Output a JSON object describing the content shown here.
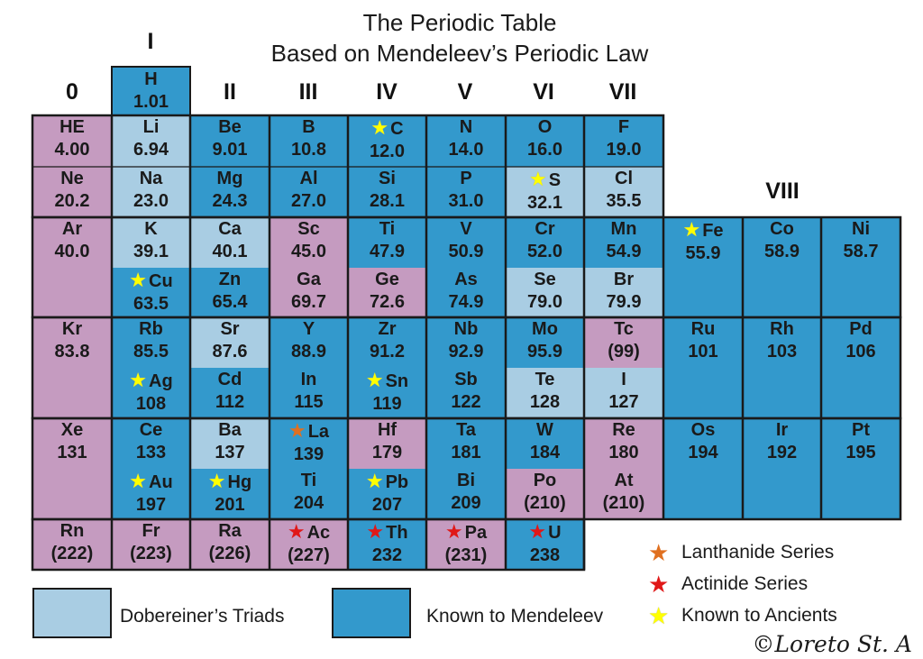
{
  "title": {
    "line1": "The Periodic Table",
    "line2": "Based on Mendeleev’s Periodic Law"
  },
  "groups": {
    "g0": "0",
    "g1": "I",
    "g2": "II",
    "g3": "III",
    "g4": "IV",
    "g5": "V",
    "g6": "VI",
    "g7": "VII",
    "g8": "VIII"
  },
  "hydrogen": {
    "symbol": "H",
    "weight": "1.01"
  },
  "elements": [
    {
      "symbol": "HE",
      "weight": "4.00"
    },
    {
      "symbol": "Li",
      "weight": "6.94"
    },
    {
      "symbol": "Be",
      "weight": "9.01"
    },
    {
      "symbol": "B",
      "weight": "10.8"
    },
    {
      "symbol": "C",
      "weight": "12.0"
    },
    {
      "symbol": "N",
      "weight": "14.0"
    },
    {
      "symbol": "O",
      "weight": "16.0"
    },
    {
      "symbol": "F",
      "weight": "19.0"
    },
    {
      "symbol": "Ne",
      "weight": "20.2"
    },
    {
      "symbol": "Na",
      "weight": "23.0"
    },
    {
      "symbol": "Mg",
      "weight": "24.3"
    },
    {
      "symbol": "Al",
      "weight": "27.0"
    },
    {
      "symbol": "Si",
      "weight": "28.1"
    },
    {
      "symbol": "P",
      "weight": "31.0"
    },
    {
      "symbol": "S",
      "weight": "32.1"
    },
    {
      "symbol": "Cl",
      "weight": "35.5"
    },
    {
      "symbol": "Ar",
      "weight": "40.0"
    },
    {
      "symbol": "K",
      "weight": "39.1"
    },
    {
      "symbol": "Ca",
      "weight": "40.1"
    },
    {
      "symbol": "Sc",
      "weight": "45.0"
    },
    {
      "symbol": "Ti",
      "weight": "47.9"
    },
    {
      "symbol": "V",
      "weight": "50.9"
    },
    {
      "symbol": "Cr",
      "weight": "52.0"
    },
    {
      "symbol": "Mn",
      "weight": "54.9"
    },
    {
      "symbol": "Cu",
      "weight": "63.5"
    },
    {
      "symbol": "Zn",
      "weight": "65.4"
    },
    {
      "symbol": "Ga",
      "weight": "69.7"
    },
    {
      "symbol": "Ge",
      "weight": "72.6"
    },
    {
      "symbol": "As",
      "weight": "74.9"
    },
    {
      "symbol": "Se",
      "weight": "79.0"
    },
    {
      "symbol": "Br",
      "weight": "79.9"
    },
    {
      "symbol": "Kr",
      "weight": "83.8"
    },
    {
      "symbol": "Rb",
      "weight": "85.5"
    },
    {
      "symbol": "Sr",
      "weight": "87.6"
    },
    {
      "symbol": "Y",
      "weight": "88.9"
    },
    {
      "symbol": "Zr",
      "weight": "91.2"
    },
    {
      "symbol": "Nb",
      "weight": "92.9"
    },
    {
      "symbol": "Mo",
      "weight": "95.9"
    },
    {
      "symbol": "Tc",
      "weight": "(99)"
    },
    {
      "symbol": "Ag",
      "weight": "108"
    },
    {
      "symbol": "Cd",
      "weight": "112"
    },
    {
      "symbol": "In",
      "weight": "115"
    },
    {
      "symbol": "Sn",
      "weight": "119"
    },
    {
      "symbol": "Sb",
      "weight": "122"
    },
    {
      "symbol": "Te",
      "weight": "128"
    },
    {
      "symbol": "I",
      "weight": "127"
    },
    {
      "symbol": "Xe",
      "weight": "131"
    },
    {
      "symbol": "Ce",
      "weight": "133"
    },
    {
      "symbol": "Ba",
      "weight": "137"
    },
    {
      "symbol": "La",
      "weight": "139"
    },
    {
      "symbol": "Hf",
      "weight": "179"
    },
    {
      "symbol": "Ta",
      "weight": "181"
    },
    {
      "symbol": "W",
      "weight": "184"
    },
    {
      "symbol": "Re",
      "weight": "180"
    },
    {
      "symbol": "Au",
      "weight": "197"
    },
    {
      "symbol": "Hg",
      "weight": "201"
    },
    {
      "symbol": "Ti",
      "weight": "204"
    },
    {
      "symbol": "Pb",
      "weight": "207"
    },
    {
      "symbol": "Bi",
      "weight": "209"
    },
    {
      "symbol": "Po",
      "weight": "(210)"
    },
    {
      "symbol": "At",
      "weight": "(210)"
    },
    {
      "symbol": "Rn",
      "weight": "(222)"
    },
    {
      "symbol": "Fr",
      "weight": "(223)"
    },
    {
      "symbol": "Ra",
      "weight": "(226)"
    },
    {
      "symbol": "Ac",
      "weight": "(227)"
    },
    {
      "symbol": "Th",
      "weight": "232"
    },
    {
      "symbol": "Pa",
      "weight": "(231)"
    },
    {
      "symbol": "U",
      "weight": "238"
    },
    {
      "symbol": "Fe",
      "weight": "55.9"
    },
    {
      "symbol": "Co",
      "weight": "58.9"
    },
    {
      "symbol": "Ni",
      "weight": "58.7"
    },
    {
      "symbol": "Ru",
      "weight": "101"
    },
    {
      "symbol": "Rh",
      "weight": "103"
    },
    {
      "symbol": "Pd",
      "weight": "106"
    },
    {
      "symbol": "Os",
      "weight": "194"
    },
    {
      "symbol": "Ir",
      "weight": "192"
    },
    {
      "symbol": "Pt",
      "weight": "195"
    }
  ],
  "legend": {
    "triads": "Dobereiner’s Triads",
    "known": "Known to Mendeleev",
    "lanthanide": "Lanthanide Series",
    "actinide": "Actinide Series",
    "ancients": "Known to Ancients"
  },
  "colors": {
    "pink": "#c59bc0",
    "light_blue": "#a9cde3",
    "blue": "#3399cc",
    "star_yellow": "#ffff00",
    "star_orange": "#e07020",
    "star_red": "#e01818"
  },
  "copyright": "©Loreto St. A"
}
